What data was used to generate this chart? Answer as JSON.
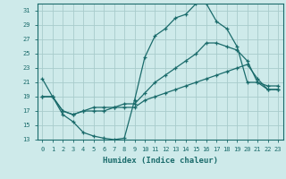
{
  "xlabel": "Humidex (Indice chaleur)",
  "background_color": "#ceeaea",
  "grid_color": "#a8cccc",
  "line_color": "#1a6b6b",
  "xlim": [
    -0.5,
    23.5
  ],
  "ylim": [
    13,
    32
  ],
  "yticks": [
    13,
    15,
    17,
    19,
    21,
    23,
    25,
    27,
    29,
    31
  ],
  "xticks": [
    0,
    1,
    2,
    3,
    4,
    5,
    6,
    7,
    8,
    9,
    10,
    11,
    12,
    13,
    14,
    15,
    16,
    17,
    18,
    19,
    20,
    21,
    22,
    23
  ],
  "series1_x": [
    0,
    1,
    2,
    3,
    4,
    5,
    6,
    7,
    8,
    9,
    10,
    11,
    12,
    13,
    14,
    15,
    16,
    17,
    18,
    19,
    20,
    21,
    22,
    23
  ],
  "series1_y": [
    21.5,
    19.0,
    16.5,
    15.5,
    14.0,
    13.5,
    13.2,
    13.0,
    13.2,
    18.5,
    24.5,
    27.5,
    28.5,
    30.0,
    30.5,
    32.0,
    32.0,
    29.5,
    28.5,
    26.0,
    21.0,
    21.0,
    20.0,
    20.0
  ],
  "series2_x": [
    0,
    1,
    2,
    3,
    4,
    5,
    6,
    7,
    8,
    9,
    10,
    11,
    12,
    13,
    14,
    15,
    16,
    17,
    18,
    19,
    20,
    21,
    22,
    23
  ],
  "series2_y": [
    19.0,
    19.0,
    17.0,
    16.5,
    17.0,
    17.0,
    17.0,
    17.5,
    17.5,
    17.5,
    18.5,
    19.0,
    19.5,
    20.0,
    20.5,
    21.0,
    21.5,
    22.0,
    22.5,
    23.0,
    23.5,
    21.5,
    20.0,
    20.0
  ],
  "series3_x": [
    0,
    1,
    2,
    3,
    4,
    5,
    6,
    7,
    8,
    9,
    10,
    11,
    12,
    13,
    14,
    15,
    16,
    17,
    18,
    19,
    20,
    21,
    22,
    23
  ],
  "series3_y": [
    19.0,
    19.0,
    17.0,
    16.5,
    17.0,
    17.5,
    17.5,
    17.5,
    18.0,
    18.0,
    19.5,
    21.0,
    22.0,
    23.0,
    24.0,
    25.0,
    26.5,
    26.5,
    26.0,
    25.5,
    24.0,
    21.0,
    20.5,
    20.5
  ]
}
